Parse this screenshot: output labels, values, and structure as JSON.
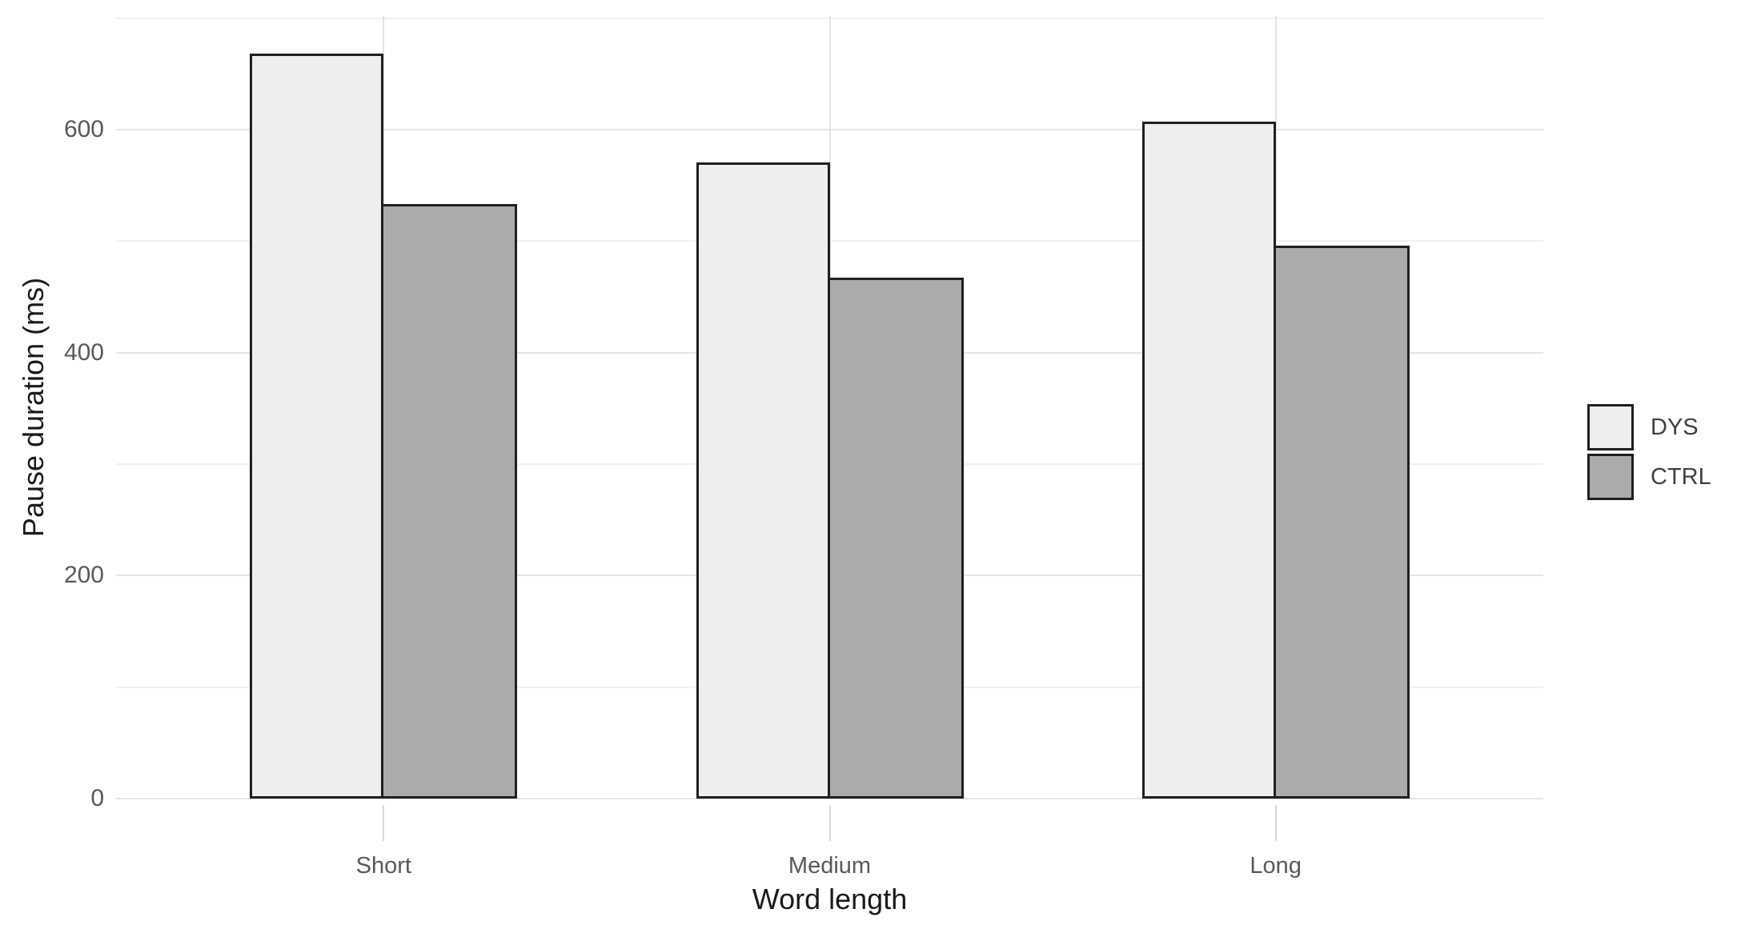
{
  "chart_data": {
    "type": "bar",
    "title": "",
    "xlabel": "Word length",
    "ylabel": "Pause duration (ms)",
    "categories": [
      "Short",
      "Medium",
      "Long"
    ],
    "series": [
      {
        "name": "DYS",
        "values": [
          668,
          571,
          607
        ],
        "fill": "#eeeeee"
      },
      {
        "name": "CTRL",
        "values": [
          533,
          467,
          496
        ],
        "fill": "#ababab"
      }
    ],
    "ylim": [
      0,
      702
    ],
    "yticks": [
      0,
      200,
      400,
      600
    ],
    "yminorticks": [
      100,
      300,
      500,
      700
    ],
    "bar_outline": "#1f1f1f",
    "legend_position": "right-middle",
    "grid": "on",
    "colors": {
      "background": "#ffffff",
      "grid_major": "#e4e4e4",
      "grid_minor": "#f0f0f0",
      "axis_tick": "#d6d6d6",
      "tick_label": "#595959",
      "axis_title": "#1a1a1a",
      "legend_label": "#404040",
      "legend_key_border": "#1f1f1f"
    }
  }
}
